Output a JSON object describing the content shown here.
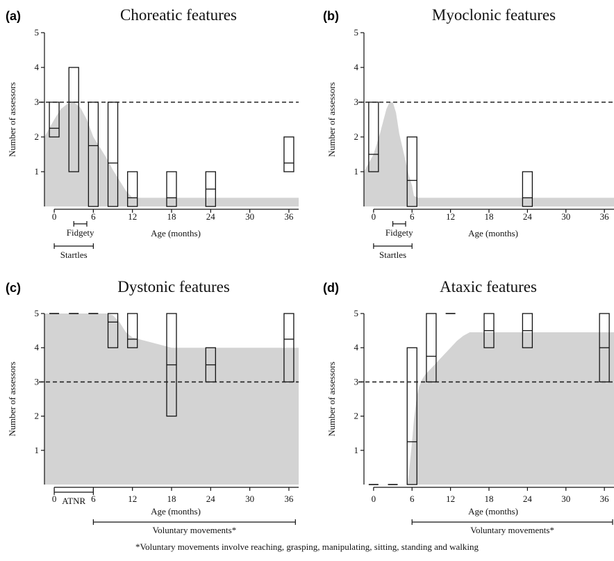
{
  "footnote": "*Voluntary movements involve reaching, grasping, manipulating, sitting, standing and walking",
  "chart_data": [
    {
      "type": "area",
      "panel": "(a)",
      "title": "Choreatic features",
      "xlabel": "Age (months)",
      "ylabel": "Number of assessors",
      "xlim": [
        -1.5,
        37.5
      ],
      "ylim": [
        0,
        5
      ],
      "xticks": [
        0,
        6,
        12,
        18,
        24,
        30,
        36
      ],
      "yticks": [
        1,
        2,
        3,
        4,
        5
      ],
      "threshold": 3,
      "grid": false,
      "area": {
        "x": [
          -1.5,
          0,
          1,
          2,
          3,
          4,
          5,
          6,
          7,
          8,
          9,
          10,
          11,
          12,
          18,
          24,
          30,
          36,
          37.5
        ],
        "y": [
          2.0,
          2.5,
          2.8,
          2.95,
          3.0,
          2.85,
          2.5,
          2.0,
          1.7,
          1.4,
          1.05,
          0.75,
          0.45,
          0.25,
          0.25,
          0.25,
          0.25,
          0.25,
          0.25
        ]
      },
      "boxes": [
        {
          "x": 0,
          "low": 2,
          "median": 2.25,
          "high": 3
        },
        {
          "x": 3,
          "low": 1,
          "median": 3,
          "high": 4
        },
        {
          "x": 6,
          "low": 0,
          "median": 1.75,
          "high": 3
        },
        {
          "x": 9,
          "low": 0,
          "median": 1.25,
          "high": 3
        },
        {
          "x": 12,
          "low": 0,
          "median": 0.25,
          "high": 1
        },
        {
          "x": 18,
          "low": 0,
          "median": 0.25,
          "high": 1
        },
        {
          "x": 24,
          "low": 0,
          "median": 0.5,
          "high": 1
        },
        {
          "x": 36,
          "low": 1,
          "median": 1.25,
          "high": 2
        }
      ],
      "dashes": [],
      "annotations": [
        {
          "label": "Fidgety",
          "from": 3,
          "to": 5,
          "row": 1
        },
        {
          "label": "Startles",
          "from": 0,
          "to": 6,
          "row": 2
        }
      ]
    },
    {
      "type": "area",
      "panel": "(b)",
      "title": "Myoclonic features",
      "xlabel": "Age (months)",
      "ylabel": "Number of assessors",
      "xlim": [
        -1.5,
        37.5
      ],
      "ylim": [
        0,
        5
      ],
      "xticks": [
        0,
        6,
        12,
        18,
        24,
        30,
        36
      ],
      "yticks": [
        1,
        2,
        3,
        4,
        5
      ],
      "threshold": 3,
      "grid": false,
      "area": {
        "x": [
          -1.5,
          0,
          1,
          2,
          2.5,
          3,
          3.5,
          4,
          5,
          5.5,
          6,
          6.3,
          7,
          12,
          18,
          24,
          30,
          36,
          37.5
        ],
        "y": [
          1.0,
          1.5,
          2.1,
          2.8,
          3.0,
          3.0,
          2.7,
          2.1,
          1.3,
          0.9,
          0.6,
          0.3,
          0.25,
          0.25,
          0.25,
          0.25,
          0.25,
          0.25,
          0.25
        ]
      },
      "boxes": [
        {
          "x": 0,
          "low": 1,
          "median": 1.5,
          "high": 3
        },
        {
          "x": 6,
          "low": 0,
          "median": 0.75,
          "high": 2
        },
        {
          "x": 24,
          "low": 0,
          "median": 0.25,
          "high": 1
        }
      ],
      "dashes": [],
      "annotations": [
        {
          "label": "Fidgety",
          "from": 3,
          "to": 5,
          "row": 1
        },
        {
          "label": "Startles",
          "from": 0,
          "to": 6,
          "row": 2
        }
      ]
    },
    {
      "type": "area",
      "panel": "(c)",
      "title": "Dystonic features",
      "xlabel": "Age (months)",
      "ylabel": "Number of assessors",
      "xlim": [
        -1.5,
        37.5
      ],
      "ylim": [
        0,
        5
      ],
      "xticks": [
        0,
        6,
        12,
        18,
        24,
        30,
        36
      ],
      "yticks": [
        1,
        2,
        3,
        4,
        5
      ],
      "threshold": 3,
      "grid": false,
      "area": {
        "x": [
          -1.5,
          0,
          6,
          8,
          9,
          10,
          11,
          12,
          14,
          16,
          18,
          24,
          30,
          36,
          37.5
        ],
        "y": [
          5,
          5,
          5,
          5,
          4.95,
          4.75,
          4.45,
          4.3,
          4.2,
          4.1,
          4.0,
          4.0,
          4.0,
          4.0,
          4.0
        ]
      },
      "boxes": [
        {
          "x": 9,
          "low": 4,
          "median": 4.75,
          "high": 5
        },
        {
          "x": 12,
          "low": 4,
          "median": 4.25,
          "high": 5
        },
        {
          "x": 18,
          "low": 2,
          "median": 3.5,
          "high": 5
        },
        {
          "x": 24,
          "low": 3,
          "median": 3.5,
          "high": 4
        },
        {
          "x": 36,
          "low": 3,
          "median": 4.25,
          "high": 5
        }
      ],
      "dashes": [
        {
          "x": 0,
          "y": 5
        },
        {
          "x": 3,
          "y": 5
        },
        {
          "x": 6,
          "y": 5
        }
      ],
      "annotations": [
        {
          "label": "ATNR",
          "from": 0,
          "to": 6,
          "row": 1
        },
        {
          "label": "Voluntary movements*",
          "from": 6,
          "to": 37,
          "row": 2
        }
      ]
    },
    {
      "type": "area",
      "panel": "(d)",
      "title": "Ataxic features",
      "xlabel": "Age (months)",
      "ylabel": "Number of assessors",
      "xlim": [
        -1.5,
        37.5
      ],
      "ylim": [
        0,
        5
      ],
      "xticks": [
        0,
        6,
        12,
        18,
        24,
        30,
        36
      ],
      "yticks": [
        1,
        2,
        3,
        4,
        5
      ],
      "threshold": 3,
      "grid": false,
      "area": {
        "x": [
          5.3,
          5.6,
          6,
          6.3,
          6.7,
          7,
          7.5,
          8,
          9,
          10,
          11,
          12,
          13,
          14,
          15,
          18,
          24,
          30,
          36,
          37.5
        ],
        "y": [
          0,
          0.5,
          1.25,
          1.9,
          2.5,
          2.8,
          3.05,
          3.2,
          3.4,
          3.6,
          3.8,
          4.0,
          4.2,
          4.35,
          4.45,
          4.45,
          4.45,
          4.45,
          4.45,
          4.45
        ]
      },
      "boxes": [
        {
          "x": 6,
          "low": 0,
          "median": 1.25,
          "high": 4
        },
        {
          "x": 9,
          "low": 3,
          "median": 3.75,
          "high": 5
        },
        {
          "x": 18,
          "low": 4,
          "median": 4.5,
          "high": 5
        },
        {
          "x": 24,
          "low": 4,
          "median": 4.5,
          "high": 5
        },
        {
          "x": 36,
          "low": 3,
          "median": 4,
          "high": 5
        }
      ],
      "dashes": [
        {
          "x": 0,
          "y": 0
        },
        {
          "x": 3,
          "y": 0
        },
        {
          "x": 12,
          "y": 5
        }
      ],
      "annotations": [
        {
          "label": "Voluntary movements*",
          "from": 6,
          "to": 37.5,
          "row": 2
        }
      ]
    }
  ]
}
